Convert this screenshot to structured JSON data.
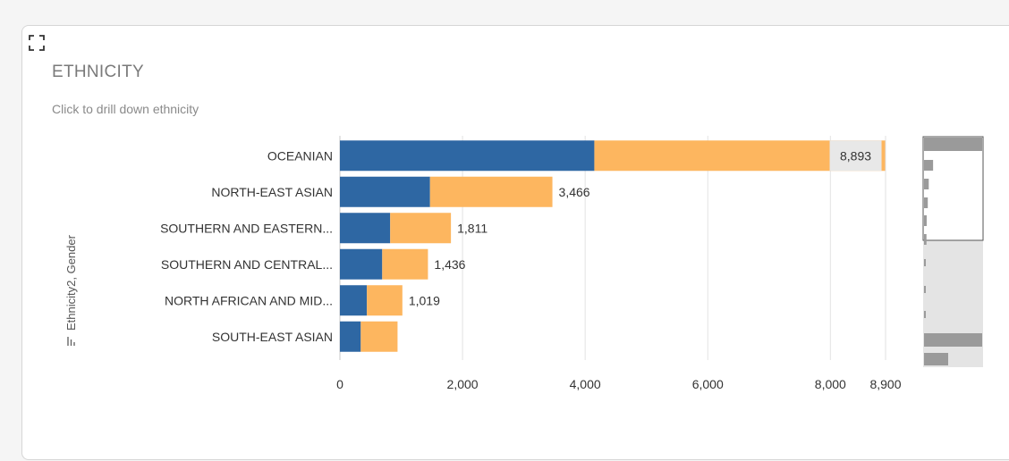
{
  "header": {
    "title": "ETHNICITY",
    "subtitle": "Click to drill down ethnicity"
  },
  "colors": {
    "male": "#2e67a3",
    "female": "#fdb65f",
    "grid": "#e2e2e2",
    "total_label_bg": "#e8e8e8"
  },
  "chart_data": {
    "type": "bar",
    "orientation": "horizontal",
    "stacked": true,
    "ylabel": "Ethnicity2, Gender",
    "categories": [
      "OCEANIAN",
      "NORTH-EAST ASIAN",
      "SOUTHERN AND EASTERN...",
      "SOUTHERN AND CENTRAL...",
      "NORTH AFRICAN AND MID...",
      "SOUTH-EAST ASIAN"
    ],
    "series": [
      {
        "values": [
          4150,
          1470,
          820,
          690,
          440,
          340
        ]
      },
      {
        "values": [
          4743,
          1996,
          991,
          746,
          579,
          600
        ]
      }
    ],
    "totals": [
      "8,893",
      "3,466",
      "1,811",
      "1,436",
      "1,019",
      ""
    ],
    "xlim": [
      0,
      8900
    ],
    "xticks": [
      0,
      2000,
      4000,
      6000,
      8000,
      8900
    ],
    "xtick_labels": [
      "0",
      "2,000",
      "4,000",
      "6,000",
      "8,000",
      "8,900"
    ],
    "grid": true,
    "navigator": true
  }
}
